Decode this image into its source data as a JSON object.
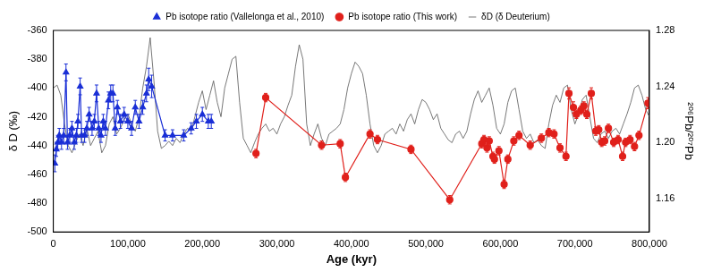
{
  "chart_data": {
    "type": "scatter",
    "x_label": "Age (kyr)",
    "y_label": "δ D (‰)",
    "y2_label": "²⁰⁶Pb/²⁰⁷Pb",
    "xlim": [
      0,
      800000
    ],
    "xticks": [
      0,
      {
        "value": 100000,
        "label": "100,000"
      },
      {
        "value": 200000,
        "label": "200,000"
      },
      {
        "value": 300000,
        "label": "300,000"
      },
      {
        "value": 400000,
        "label": "400,000"
      },
      {
        "value": 500000,
        "label": "500,000"
      },
      {
        "value": 600000,
        "label": "600,000"
      },
      {
        "value": 700000,
        "label": "700,000"
      },
      {
        "value": 800000,
        "label": "800,000"
      }
    ],
    "ylim": [
      -500,
      -360
    ],
    "yticks": [
      -500,
      -480,
      -460,
      -440,
      -420,
      -400,
      -380,
      -360
    ],
    "y2lim": [
      1.136,
      1.28
    ],
    "y2ticks": [
      1.16,
      {
        "value": 1.2,
        "label": "1.20"
      },
      1.24,
      1.28
    ],
    "grid": false,
    "legend": "top",
    "series": [
      {
        "name": "δD (δ Deuterium)",
        "color": "#555555",
        "type": "line",
        "marker": "none",
        "line_style": "solid",
        "x": [
          0,
          5000,
          10000,
          15000,
          20000,
          25000,
          30000,
          35000,
          40000,
          45000,
          50000,
          55000,
          60000,
          65000,
          70000,
          75000,
          80000,
          85000,
          90000,
          95000,
          100000,
          105000,
          110000,
          115000,
          120000,
          125000,
          130000,
          135000,
          140000,
          145000,
          150000,
          155000,
          160000,
          165000,
          170000,
          175000,
          180000,
          185000,
          190000,
          195000,
          200000,
          205000,
          210000,
          215000,
          220000,
          225000,
          230000,
          235000,
          240000,
          245000,
          250000,
          255000,
          260000,
          265000,
          270000,
          275000,
          280000,
          285000,
          290000,
          295000,
          300000,
          305000,
          310000,
          315000,
          320000,
          325000,
          330000,
          335000,
          340000,
          345000,
          350000,
          355000,
          360000,
          365000,
          370000,
          375000,
          380000,
          385000,
          390000,
          395000,
          400000,
          405000,
          410000,
          415000,
          420000,
          425000,
          430000,
          435000,
          440000,
          445000,
          450000,
          455000,
          460000,
          465000,
          470000,
          475000,
          480000,
          485000,
          490000,
          495000,
          500000,
          505000,
          510000,
          515000,
          520000,
          525000,
          530000,
          535000,
          540000,
          545000,
          550000,
          555000,
          560000,
          565000,
          570000,
          575000,
          580000,
          585000,
          590000,
          595000,
          600000,
          605000,
          610000,
          615000,
          620000,
          625000,
          630000,
          635000,
          640000,
          645000,
          650000,
          655000,
          660000,
          665000,
          670000,
          675000,
          680000,
          685000,
          690000,
          695000,
          700000,
          705000,
          710000,
          715000,
          720000,
          725000,
          730000,
          735000,
          740000,
          745000,
          750000,
          755000,
          760000,
          765000,
          770000,
          775000,
          780000,
          785000,
          790000,
          795000,
          800000
        ],
        "values": [
          -400,
          -398,
          -405,
          -425,
          -440,
          -445,
          -438,
          -432,
          -440,
          -428,
          -440,
          -435,
          -430,
          -445,
          -440,
          -425,
          -420,
          -432,
          -428,
          -422,
          -418,
          -425,
          -430,
          -420,
          -400,
          -385,
          -365,
          -395,
          -430,
          -442,
          -440,
          -437,
          -440,
          -435,
          -438,
          -432,
          -428,
          -430,
          -420,
          -410,
          -402,
          -415,
          -405,
          -395,
          -410,
          -420,
          -400,
          -390,
          -380,
          -378,
          -410,
          -435,
          -440,
          -445,
          -438,
          -432,
          -428,
          -425,
          -430,
          -428,
          -432,
          -425,
          -420,
          -412,
          -405,
          -385,
          -370,
          -380,
          -425,
          -440,
          -432,
          -425,
          -435,
          -440,
          -432,
          -430,
          -428,
          -425,
          -415,
          -400,
          -390,
          -382,
          -385,
          -390,
          -405,
          -425,
          -440,
          -445,
          -440,
          -432,
          -430,
          -428,
          -432,
          -425,
          -430,
          -422,
          -418,
          -425,
          -415,
          -408,
          -410,
          -415,
          -422,
          -418,
          -428,
          -432,
          -436,
          -438,
          -432,
          -430,
          -435,
          -430,
          -418,
          -408,
          -402,
          -410,
          -405,
          -400,
          -412,
          -428,
          -432,
          -425,
          -410,
          -402,
          -400,
          -415,
          -430,
          -435,
          -432,
          -438,
          -436,
          -440,
          -442,
          -425,
          -412,
          -405,
          -410,
          -400,
          -398,
          -415,
          -425,
          -418,
          -408,
          -405,
          -420,
          -435,
          -438,
          -432,
          -430,
          -435,
          -430,
          -428,
          -432,
          -425,
          -418,
          -410,
          -400,
          -398,
          -405,
          -415,
          -420
        ]
      },
      {
        "name": "Pb isotope ratio (Vallelonga et al., 2010)",
        "color": "#1a2fd6",
        "type": "line",
        "marker": "triangle",
        "line_style": "solid",
        "axis": "y2",
        "x": [
          2000,
          4000,
          6000,
          8000,
          11000,
          14000,
          17000,
          19000,
          22000,
          25000,
          28000,
          31000,
          33000,
          36000,
          38000,
          42000,
          45000,
          48000,
          52000,
          55000,
          58000,
          61000,
          64000,
          67000,
          70000,
          74000,
          77000,
          80000,
          83000,
          86000,
          90000,
          95000,
          100000,
          105000,
          110000,
          115000,
          120000,
          125000,
          128000,
          132000,
          150000,
          160000,
          175000,
          185000,
          192000,
          200000,
          208000,
          212000
        ],
        "values": [
          1.185,
          1.195,
          1.2,
          1.205,
          1.2,
          1.205,
          1.25,
          1.2,
          1.205,
          1.21,
          1.2,
          1.205,
          1.215,
          1.24,
          1.205,
          1.205,
          1.21,
          1.22,
          1.21,
          1.215,
          1.235,
          1.21,
          1.205,
          1.215,
          1.21,
          1.23,
          1.235,
          1.235,
          1.21,
          1.225,
          1.215,
          1.22,
          1.215,
          1.21,
          1.225,
          1.215,
          1.225,
          1.235,
          1.245,
          1.24,
          1.205,
          1.205,
          1.205,
          1.21,
          1.215,
          1.22,
          1.215,
          1.215
        ],
        "errors": [
          0.006,
          0.005,
          0.005,
          0.005,
          0.005,
          0.005,
          0.006,
          0.005,
          0.005,
          0.005,
          0.005,
          0.005,
          0.005,
          0.006,
          0.005,
          0.005,
          0.005,
          0.005,
          0.005,
          0.005,
          0.006,
          0.005,
          0.005,
          0.005,
          0.005,
          0.006,
          0.006,
          0.006,
          0.005,
          0.005,
          0.005,
          0.005,
          0.005,
          0.005,
          0.005,
          0.005,
          0.005,
          0.006,
          0.008,
          0.008,
          0.004,
          0.004,
          0.004,
          0.004,
          0.005,
          0.005,
          0.005,
          0.005
        ]
      },
      {
        "name": "Pb isotope ratio (This work)",
        "color": "#e0201b",
        "type": "line",
        "marker": "circle",
        "line_style": "solid",
        "axis": "y2",
        "x": [
          272000,
          285000,
          360000,
          385000,
          392000,
          425000,
          435000,
          480000,
          532000,
          575000,
          578000,
          582000,
          585000,
          590000,
          592000,
          598000,
          605000,
          610000,
          618000,
          625000,
          640000,
          655000,
          665000,
          672000,
          680000,
          688000,
          692000,
          698000,
          702000,
          708000,
          712000,
          716000,
          722000,
          728000,
          732000,
          736000,
          740000,
          745000,
          752000,
          758000,
          764000,
          768000,
          774000,
          780000,
          786000,
          798000
        ],
        "values": [
          1.192,
          1.232,
          1.198,
          1.199,
          1.175,
          1.206,
          1.202,
          1.195,
          1.159,
          1.199,
          1.202,
          1.196,
          1.201,
          1.19,
          1.188,
          1.194,
          1.17,
          1.188,
          1.201,
          1.205,
          1.198,
          1.203,
          1.207,
          1.206,
          1.196,
          1.19,
          1.235,
          1.225,
          1.22,
          1.223,
          1.226,
          1.22,
          1.235,
          1.208,
          1.209,
          1.2,
          1.201,
          1.21,
          1.2,
          1.202,
          1.19,
          1.2,
          1.202,
          1.197,
          1.205,
          1.228
        ],
        "errors": [
          0.003,
          0.003,
          0.003,
          0.003,
          0.003,
          0.003,
          0.003,
          0.003,
          0.003,
          0.003,
          0.003,
          0.003,
          0.003,
          0.003,
          0.003,
          0.003,
          0.003,
          0.003,
          0.003,
          0.003,
          0.003,
          0.003,
          0.003,
          0.003,
          0.003,
          0.003,
          0.004,
          0.004,
          0.003,
          0.003,
          0.003,
          0.003,
          0.004,
          0.003,
          0.003,
          0.003,
          0.003,
          0.003,
          0.003,
          0.003,
          0.003,
          0.003,
          0.003,
          0.003,
          0.003,
          0.004
        ]
      }
    ]
  }
}
